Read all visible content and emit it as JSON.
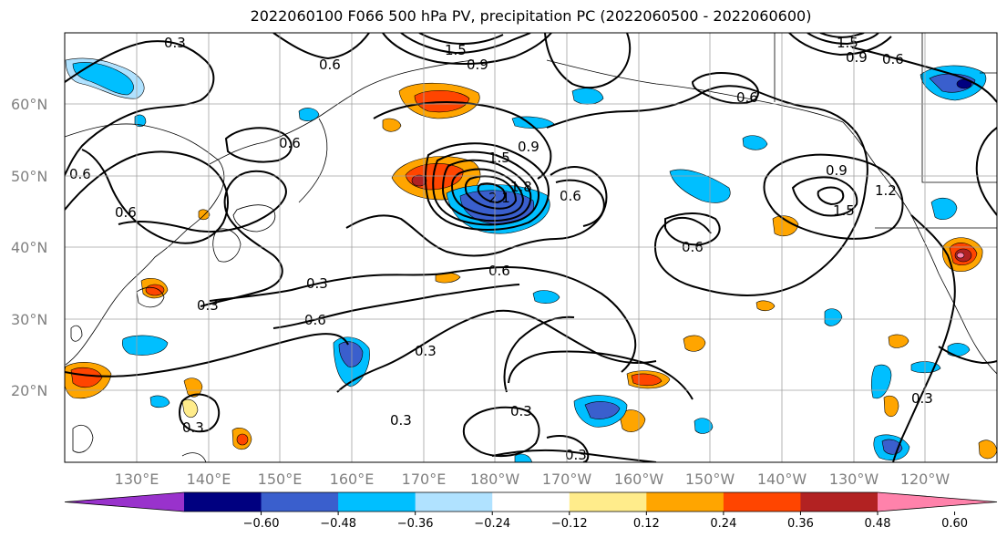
{
  "title": "2022060100 F066 500 hPa PV, precipitation PC (2022060500 - 2022060600)",
  "lat_labels": [
    "60°N",
    "50°N",
    "40°N",
    "30°N",
    "20°N"
  ],
  "lon_labels": [
    "130°E",
    "140°E",
    "150°E",
    "160°E",
    "170°E",
    "180°W",
    "170°W",
    "160°W",
    "150°W",
    "140°W",
    "130°W",
    "120°W"
  ],
  "contour_labels": [
    "0.3",
    "0.6",
    "0.9",
    "1.2",
    "1.5",
    "1.8",
    "2.1"
  ],
  "colorbar": {
    "ticks": [
      "−0.60",
      "−0.48",
      "−0.36",
      "−0.24",
      "−0.12",
      "0.12",
      "0.24",
      "0.36",
      "0.48",
      "0.60"
    ],
    "colors": [
      "#9932cc",
      "#000080",
      "#3a5fcd",
      "#00bfff",
      "#b0e2ff",
      "#ffffff",
      "#ffec8b",
      "#ffa500",
      "#ff4500",
      "#b22222",
      "#ff82ab"
    ]
  }
}
